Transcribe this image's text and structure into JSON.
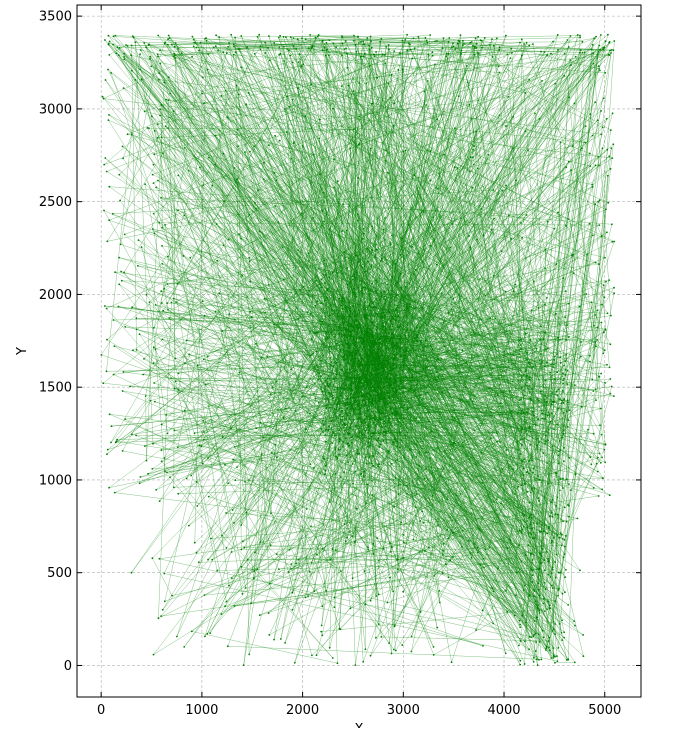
{
  "chart_data": {
    "type": "line",
    "title": "",
    "xlabel": "X",
    "ylabel": "Y",
    "xlim": [
      -240,
      5360
    ],
    "ylim": [
      -170,
      3560
    ],
    "x_ticks": [
      0,
      1000,
      2000,
      3000,
      4000,
      5000
    ],
    "y_ticks": [
      0,
      500,
      1000,
      1500,
      2000,
      2500,
      3000,
      3500
    ],
    "grid": true,
    "grid_style": "dashed",
    "marker": "point",
    "series": [
      {
        "color": "#008000",
        "points_shown": 2400,
        "x_range": [
          0,
          5100
        ],
        "y_range": [
          0,
          3400
        ],
        "dense_center": [
          2650,
          1600
        ],
        "sample_points": [
          [
            2650,
            1600
          ],
          [
            4450,
            150
          ],
          [
            520,
            2600
          ],
          [
            3100,
            3380
          ],
          [
            4980,
            2900
          ],
          [
            1200,
            700
          ],
          [
            2300,
            40
          ],
          [
            600,
            1100
          ],
          [
            3900,
            2100
          ],
          [
            150,
            3300
          ],
          [
            4600,
            600
          ],
          [
            2000,
            2800
          ],
          [
            2900,
            400
          ],
          [
            1700,
            1500
          ],
          [
            3500,
            1200
          ],
          [
            4200,
            3350
          ],
          [
            300,
            500
          ],
          [
            2600,
            2300
          ],
          [
            5000,
            1700
          ],
          [
            800,
            3300
          ],
          [
            3300,
            100
          ],
          [
            1400,
            2100
          ],
          [
            4350,
            1000
          ],
          [
            2450,
            1250
          ],
          [
            2800,
            1900
          ],
          [
            80,
            2400
          ],
          [
            4900,
            3380
          ],
          [
            1900,
            300
          ],
          [
            3700,
            2700
          ],
          [
            2550,
            3390
          ]
        ]
      }
    ]
  }
}
